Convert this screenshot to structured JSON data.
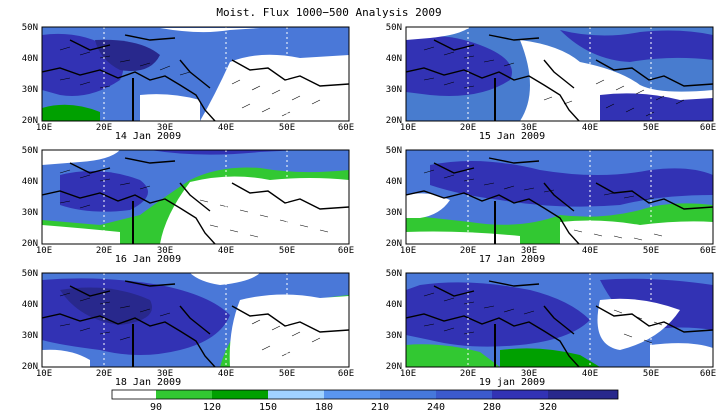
{
  "title": "Moist. Flux 1000−500 Analysis 2009",
  "lat_labels": [
    "50N",
    "40N",
    "30N",
    "20N"
  ],
  "lon_labels": [
    "10E",
    "20E",
    "30E",
    "40E",
    "50E",
    "60E"
  ],
  "panels": [
    {
      "date": "14 Jan 2009"
    },
    {
      "date": "15 Jan 2009"
    },
    {
      "date": "16 Jan 2009"
    },
    {
      "date": "17 Jan 2009"
    },
    {
      "date": "18 Jan 2009"
    },
    {
      "date": "19 jan 2009"
    }
  ],
  "colorbar": {
    "labels": [
      "90",
      "120",
      "150",
      "180",
      "210",
      "240",
      "280",
      "320"
    ],
    "colors": [
      "#ffffff",
      "#32c832",
      "#00a000",
      "#a0d2ff",
      "#5a96f0",
      "#4678dc",
      "#3c5acd",
      "#3232b4",
      "#28288c"
    ]
  },
  "colors": {
    "white": "#ffffff",
    "light_green": "#32c832",
    "dark_green": "#00a000",
    "blue": "#4a78d8",
    "purple": "#3232b4",
    "coast": "#000000"
  }
}
